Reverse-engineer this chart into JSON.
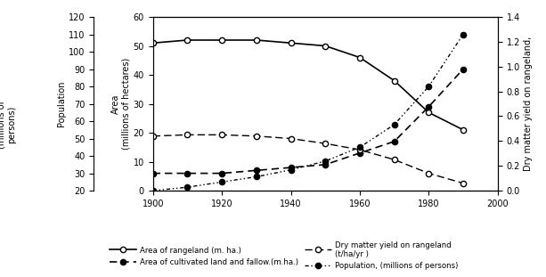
{
  "years": [
    1900,
    1910,
    1920,
    1930,
    1940,
    1950,
    1960,
    1970,
    1980,
    1990
  ],
  "rangeland_area": [
    51,
    52,
    52,
    52,
    51,
    50,
    46,
    38,
    27,
    21
  ],
  "cultivated_area": [
    6,
    6,
    6,
    7,
    8,
    9,
    13,
    17,
    29,
    42
  ],
  "dry_matter": [
    0.44,
    0.45,
    0.45,
    0.44,
    0.42,
    0.38,
    0.33,
    0.25,
    0.14,
    0.06
  ],
  "population": [
    20,
    22,
    25,
    28,
    32,
    37,
    45,
    58,
    80,
    110
  ],
  "xlim": [
    1900,
    2000
  ],
  "ylim_left": [
    0,
    60
  ],
  "ylim_right": [
    0,
    1.4
  ],
  "ylim_pop": [
    20,
    120
  ],
  "yticks_left": [
    0,
    10,
    20,
    30,
    40,
    50,
    60
  ],
  "yticks_right": [
    0.0,
    0.2,
    0.4,
    0.6,
    0.8,
    1.0,
    1.2,
    1.4
  ],
  "yticks_pop": [
    20,
    30,
    40,
    50,
    60,
    70,
    80,
    90,
    100,
    110,
    120
  ],
  "xticks": [
    1900,
    1920,
    1940,
    1960,
    1980,
    2000
  ],
  "legend": [
    "Area of rangeland (m. ha.)",
    "Area of cultivated land and fallow.(m.ha.)",
    "Dry matter yield on rangeland\n(t/ha/yr )",
    "Population, (millions of persons)"
  ],
  "ylabel_left": "Area\n(millions of hectares)",
  "ylabel_right": "Dry matter yield on rangeland,",
  "ylabel_pop_line1": "Population",
  "ylabel_pop_line2": "(millions of\npersons)"
}
